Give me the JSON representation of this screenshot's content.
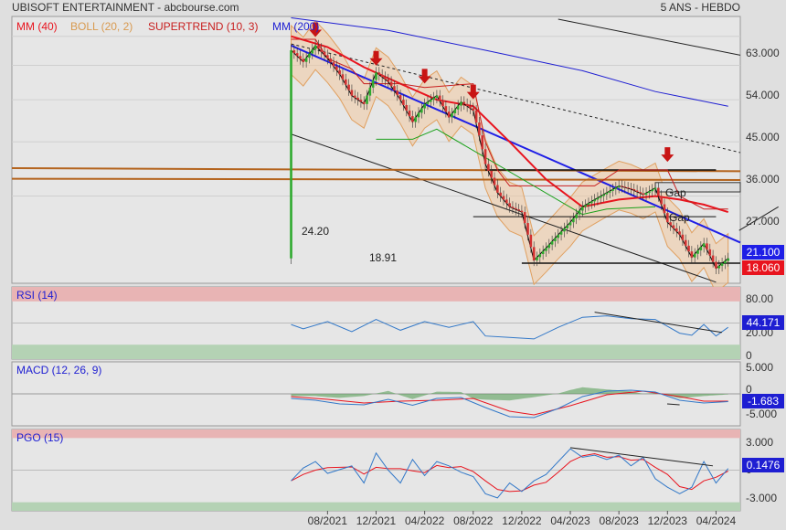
{
  "header": {
    "title": "UBISOFT ENTERTAINMENT - abcbourse.com",
    "period": "5 ANS - HEBDO"
  },
  "colors": {
    "background": "#dfdfdf",
    "panel": "#e6e6e6",
    "price_line": "#000000",
    "boll_fill": "#f0c8a0",
    "ma40": "#e8141e",
    "ma200": "#1e1ed2",
    "trend_blue": "#1e1ee6",
    "supertrend_red": "#c81e1e",
    "supertrend_green": "#19a019",
    "level_brown": "#b4641e",
    "rsi_line": "#3278c8",
    "macd_line": "#3278c8",
    "signal_line": "#e8141e",
    "overbought_band": "#e8b4b4",
    "oversold_band": "#b4d2b4",
    "arrow": "#c81414"
  },
  "chart_data": [
    {
      "type": "line",
      "panel": "price",
      "legend": [
        "MM (40)",
        "BOLL (20, 2)",
        "SUPERTREND (10, 3)",
        "MM (200)"
      ],
      "y_ticks": [
        "63.000",
        "54.000",
        "45.000",
        "36.000",
        "27.000"
      ],
      "y_scale": "log",
      "ylim": [
        17.0,
        70.0
      ],
      "x_ticks": [
        "08/2021",
        "12/2021",
        "04/2022",
        "08/2022",
        "12/2022",
        "04/2023",
        "08/2023",
        "12/2023",
        "04/2024"
      ],
      "x_range": [
        "2019-06",
        "2024-06"
      ],
      "close_points": [
        [
          "2021-05",
          58.5
        ],
        [
          "2021-06",
          55.0
        ],
        [
          "2021-07",
          60.0
        ],
        [
          "2021-08",
          56.0
        ],
        [
          "2021-09",
          51.5
        ],
        [
          "2021-10",
          46.0
        ],
        [
          "2021-11",
          44.0
        ],
        [
          "2021-12",
          52.0
        ],
        [
          "2022-01",
          49.5
        ],
        [
          "2022-02",
          45.0
        ],
        [
          "2022-03",
          40.0
        ],
        [
          "2022-04",
          44.0
        ],
        [
          "2022-05",
          46.0
        ],
        [
          "2022-06",
          41.0
        ],
        [
          "2022-07",
          44.5
        ],
        [
          "2022-08",
          42.5
        ],
        [
          "2022-09",
          32.0
        ],
        [
          "2022-10",
          27.5
        ],
        [
          "2022-11",
          25.5
        ],
        [
          "2022-12",
          24.8
        ],
        [
          "2023-01",
          19.2
        ],
        [
          "2023-02",
          20.5
        ],
        [
          "2023-03",
          22.0
        ],
        [
          "2023-04",
          23.5
        ],
        [
          "2023-05",
          25.5
        ],
        [
          "2023-06",
          26.5
        ],
        [
          "2023-07",
          27.5
        ],
        [
          "2023-08",
          28.5
        ],
        [
          "2023-09",
          28.0
        ],
        [
          "2023-10",
          27.2
        ],
        [
          "2023-11",
          28.2
        ],
        [
          "2023-12",
          23.5
        ],
        [
          "2024-01",
          22.0
        ],
        [
          "2024-02",
          19.5
        ],
        [
          "2024-03",
          21.0
        ],
        [
          "2024-04",
          18.4
        ],
        [
          "2024-05",
          19.4
        ]
      ],
      "ma40_points": [
        [
          "2021-05",
          63.0
        ],
        [
          "2021-08",
          59.5
        ],
        [
          "2021-11",
          53.5
        ],
        [
          "2022-02",
          49.0
        ],
        [
          "2022-05",
          45.0
        ],
        [
          "2022-08",
          43.5
        ],
        [
          "2022-11",
          36.0
        ],
        [
          "2023-02",
          29.5
        ],
        [
          "2023-05",
          25.5
        ],
        [
          "2023-08",
          26.5
        ],
        [
          "2023-11",
          27.0
        ],
        [
          "2024-01",
          26.5
        ],
        [
          "2024-03",
          25.8
        ],
        [
          "2024-05",
          24.8
        ]
      ],
      "ma200_points": [
        [
          "2021-05",
          69.5
        ],
        [
          "2022-01",
          65.0
        ],
        [
          "2022-09",
          58.5
        ],
        [
          "2023-05",
          52.5
        ],
        [
          "2023-11",
          47.0
        ],
        [
          "2024-05",
          43.5
        ]
      ],
      "annotations": [
        {
          "text": "24.20",
          "value": 24.2
        },
        {
          "text": "18.91",
          "value": 18.91
        },
        {
          "text": "Gap",
          "value": 31.5
        },
        {
          "text": "Gap",
          "value": 28.5
        }
      ],
      "last_price": "18.060",
      "trend_label": "21.100",
      "horizontal_levels": [
        31.2,
        30.0,
        29.5,
        24.2,
        18.91
      ]
    },
    {
      "type": "line",
      "panel": "rsi",
      "title": "RSI (14)",
      "y_ticks": [
        "80.00",
        "20.00",
        "0"
      ],
      "ylim": [
        0,
        100
      ],
      "bands": {
        "overbought": 80,
        "oversold": 20
      },
      "last_value": "44.171",
      "points": [
        [
          "2021-05",
          48
        ],
        [
          "2021-06",
          42
        ],
        [
          "2021-08",
          52
        ],
        [
          "2021-10",
          38
        ],
        [
          "2021-12",
          55
        ],
        [
          "2022-02",
          40
        ],
        [
          "2022-04",
          52
        ],
        [
          "2022-06",
          44
        ],
        [
          "2022-08",
          52
        ],
        [
          "2022-09",
          32
        ],
        [
          "2022-11",
          30
        ],
        [
          "2023-01",
          28
        ],
        [
          "2023-03",
          44
        ],
        [
          "2023-05",
          58
        ],
        [
          "2023-07",
          60
        ],
        [
          "2023-09",
          56
        ],
        [
          "2023-11",
          55
        ],
        [
          "2024-01",
          36
        ],
        [
          "2024-02",
          33
        ],
        [
          "2024-03",
          48
        ],
        [
          "2024-04",
          32
        ],
        [
          "2024-05",
          44
        ]
      ]
    },
    {
      "type": "line",
      "panel": "macd",
      "title": "MACD (12, 26, 9)",
      "y_ticks": [
        "5.000",
        "0",
        "-5.000"
      ],
      "ylim": [
        -7,
        7
      ],
      "last_value": "-1.683",
      "macd_points": [
        [
          "2021-05",
          -1.0
        ],
        [
          "2021-07",
          -1.4
        ],
        [
          "2021-09",
          -2.2
        ],
        [
          "2021-11",
          -2.4
        ],
        [
          "2022-01",
          -1.2
        ],
        [
          "2022-03",
          -2.5
        ],
        [
          "2022-05",
          -1.0
        ],
        [
          "2022-07",
          -0.8
        ],
        [
          "2022-09",
          -3.0
        ],
        [
          "2022-11",
          -5.0
        ],
        [
          "2023-01",
          -5.2
        ],
        [
          "2023-03",
          -3.2
        ],
        [
          "2023-05",
          -0.6
        ],
        [
          "2023-07",
          0.6
        ],
        [
          "2023-09",
          0.8
        ],
        [
          "2023-11",
          0.4
        ],
        [
          "2024-01",
          -1.4
        ],
        [
          "2024-03",
          -2.0
        ],
        [
          "2024-05",
          -1.7
        ]
      ],
      "signal_points": [
        [
          "2021-05",
          -0.6
        ],
        [
          "2021-08",
          -1.2
        ],
        [
          "2021-11",
          -2.0
        ],
        [
          "2022-02",
          -1.6
        ],
        [
          "2022-05",
          -1.4
        ],
        [
          "2022-08",
          -1.0
        ],
        [
          "2022-11",
          -3.8
        ],
        [
          "2023-01",
          -4.6
        ],
        [
          "2023-04",
          -2.6
        ],
        [
          "2023-07",
          -0.2
        ],
        [
          "2023-10",
          0.6
        ],
        [
          "2024-01",
          -0.6
        ],
        [
          "2024-03",
          -1.6
        ],
        [
          "2024-05",
          -1.6
        ]
      ]
    },
    {
      "type": "line",
      "panel": "pgo",
      "title": "PGO (15)",
      "y_ticks": [
        "3.000",
        "0",
        "-3.000"
      ],
      "ylim": [
        -3.8,
        3.8
      ],
      "bands": {
        "overbought": 3.0,
        "oversold": -3.0
      },
      "last_value": "0.1476",
      "points": [
        [
          "2021-05",
          -1.0
        ],
        [
          "2021-06",
          0.2
        ],
        [
          "2021-07",
          0.8
        ],
        [
          "2021-08",
          -0.3
        ],
        [
          "2021-10",
          0.4
        ],
        [
          "2021-11",
          -1.2
        ],
        [
          "2021-12",
          1.6
        ],
        [
          "2022-01",
          0.0
        ],
        [
          "2022-02",
          -1.2
        ],
        [
          "2022-03",
          1.0
        ],
        [
          "2022-04",
          -0.5
        ],
        [
          "2022-05",
          0.8
        ],
        [
          "2022-06",
          0.4
        ],
        [
          "2022-07",
          -0.2
        ],
        [
          "2022-08",
          -0.6
        ],
        [
          "2022-09",
          -2.2
        ],
        [
          "2022-10",
          -2.6
        ],
        [
          "2022-11",
          -1.2
        ],
        [
          "2022-12",
          -2.0
        ],
        [
          "2023-01",
          -1.0
        ],
        [
          "2023-02",
          -0.4
        ],
        [
          "2023-03",
          0.8
        ],
        [
          "2023-04",
          2.0
        ],
        [
          "2023-05",
          1.2
        ],
        [
          "2023-06",
          1.4
        ],
        [
          "2023-07",
          1.0
        ],
        [
          "2023-08",
          1.4
        ],
        [
          "2023-09",
          0.4
        ],
        [
          "2023-10",
          1.2
        ],
        [
          "2023-11",
          -0.8
        ],
        [
          "2023-12",
          -1.6
        ],
        [
          "2024-01",
          -2.2
        ],
        [
          "2024-02",
          -1.6
        ],
        [
          "2024-03",
          0.8
        ],
        [
          "2024-04",
          -1.2
        ],
        [
          "2024-05",
          0.15
        ]
      ]
    }
  ]
}
